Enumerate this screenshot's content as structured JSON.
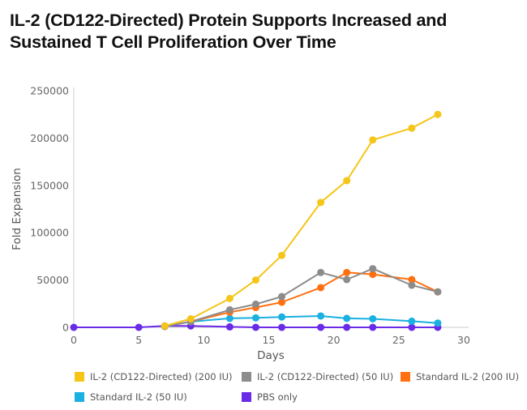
{
  "title": "IL-2 (CD122-Directed) Protein Supports Increased and Sustained T Cell Proliferation Over Time",
  "chart_data": {
    "type": "line",
    "title": "IL-2 (CD122-Directed) Protein Supports Increased and Sustained T Cell Proliferation Over Time",
    "xlabel": "Days",
    "ylabel": "Fold Expansion",
    "xlim": [
      0,
      30
    ],
    "ylim": [
      0,
      250000
    ],
    "xticks": [
      0,
      5,
      10,
      15,
      20,
      25,
      30
    ],
    "yticks": [
      0,
      50000,
      100000,
      150000,
      200000,
      250000
    ],
    "grid": false,
    "legend_position": "bottom",
    "series": [
      {
        "name": "PBS only",
        "color": "#6A2BE8",
        "x": [
          0,
          5,
          7,
          9,
          12,
          14,
          16,
          19,
          21,
          23,
          26,
          28
        ],
        "y": [
          0,
          0,
          1500,
          1500,
          500,
          0,
          0,
          0,
          0,
          0,
          0,
          0
        ]
      },
      {
        "name": "Standard IL-2 (50 IU)",
        "color": "#1AB0E0",
        "x": [
          7,
          9,
          12,
          14,
          16,
          19,
          21,
          23,
          26,
          28
        ],
        "y": [
          1000,
          6000,
          9500,
          10000,
          11000,
          12000,
          9500,
          9000,
          6500,
          4500
        ]
      },
      {
        "name": "Standard IL-2 (200 IU)",
        "color": "#FF7010",
        "x": [
          7,
          9,
          12,
          14,
          16,
          19,
          21,
          23,
          26,
          28
        ],
        "y": [
          1000,
          6000,
          16000,
          21000,
          26500,
          42000,
          58000,
          56000,
          50500,
          37500
        ]
      },
      {
        "name": "IL-2 (CD122-Directed) (50 IU)",
        "color": "#8C8C8C",
        "x": [
          7,
          9,
          12,
          14,
          16,
          19,
          21,
          23,
          26,
          28
        ],
        "y": [
          1000,
          6000,
          18500,
          24500,
          32500,
          58000,
          50500,
          62000,
          44500,
          37500
        ]
      },
      {
        "name": "IL-2 (CD122-Directed) (200 IU)",
        "color": "#F5C518",
        "x": [
          7,
          9,
          12,
          14,
          16,
          19,
          21,
          23,
          26,
          28
        ],
        "y": [
          1500,
          9000,
          30500,
          50000,
          76000,
          132000,
          155000,
          198000,
          210500,
          225000
        ]
      }
    ]
  },
  "legend": [
    {
      "label": "IL-2 (CD122-Directed) (200 IU)",
      "color": "#F5C518"
    },
    {
      "label": "IL-2 (CD122-Directed) (50 IU)",
      "color": "#8C8C8C"
    },
    {
      "label": "Standard IL-2 (200 IU)",
      "color": "#FF7010"
    },
    {
      "label": "Standard IL-2 (50 IU)",
      "color": "#1AB0E0"
    },
    {
      "label": "PBS only",
      "color": "#6A2BE8"
    }
  ]
}
